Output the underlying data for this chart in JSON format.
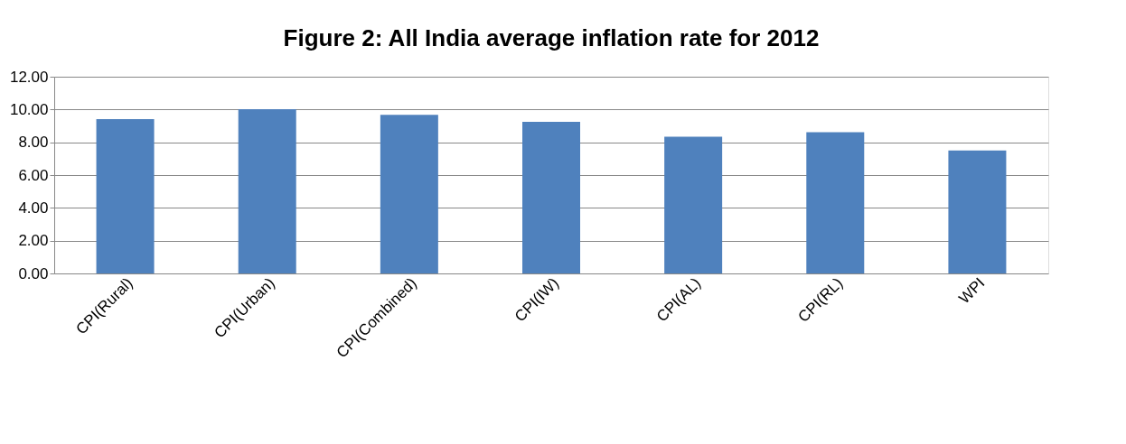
{
  "chart_data": {
    "type": "bar",
    "title": "Figure 2: All India average inflation rate for 2012",
    "categories": [
      "CPI(Rural)",
      "CPI(Urban)",
      "CPI(Combined)",
      "CPI(IW)",
      "CPI(AL)",
      "CPI(RL)",
      "WPI"
    ],
    "values": [
      9.41,
      10.02,
      9.68,
      9.25,
      8.34,
      8.61,
      7.5
    ],
    "color": "#4f81bd",
    "ylim": [
      0,
      12
    ],
    "yticks": [
      {
        "value": 0,
        "label": "0.00"
      },
      {
        "value": 2,
        "label": "2.00"
      },
      {
        "value": 4,
        "label": "4.00"
      },
      {
        "value": 6,
        "label": "6.00"
      },
      {
        "value": 8,
        "label": "8.00"
      },
      {
        "value": 10,
        "label": "10.00"
      },
      {
        "value": 12,
        "label": "12.00"
      }
    ],
    "grid": "y"
  }
}
